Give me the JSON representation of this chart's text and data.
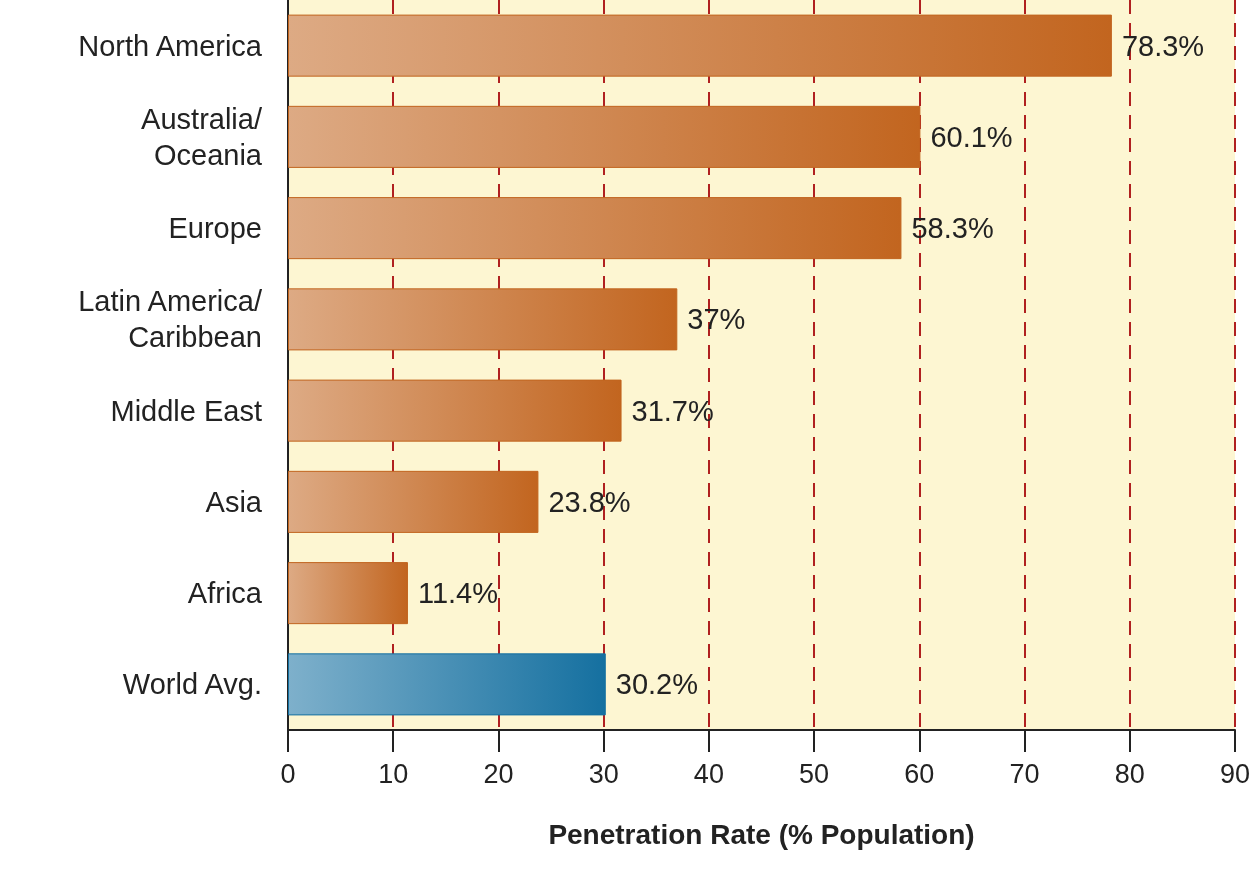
{
  "chart_data": {
    "type": "bar",
    "orientation": "horizontal",
    "xlabel": "Penetration Rate (% Population)",
    "categories": [
      "North America",
      "Australia/\nOceania",
      "Europe",
      "Latin America/\nCaribbean",
      "Middle East",
      "Asia",
      "Africa",
      "World Avg."
    ],
    "values": [
      78.3,
      60.1,
      58.3,
      37,
      31.7,
      23.8,
      11.4,
      30.2
    ],
    "value_labels": [
      "78.3%",
      "60.1%",
      "58.3%",
      "37%",
      "31.7%",
      "23.8%",
      "11.4%",
      "30.2%"
    ],
    "colors": [
      "#c2651f",
      "#c2651f",
      "#c2651f",
      "#c2651f",
      "#c2651f",
      "#c2651f",
      "#c2651f",
      "#1570a0"
    ],
    "xlim": [
      0,
      90
    ],
    "xticks": [
      0,
      10,
      20,
      30,
      40,
      50,
      60,
      70,
      80,
      90
    ],
    "grid": "x"
  }
}
